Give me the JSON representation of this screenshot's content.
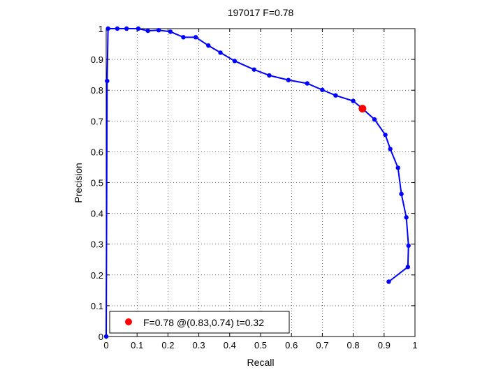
{
  "chart_data": {
    "type": "line",
    "title": "197017 F=0.78",
    "xlabel": "Recall",
    "ylabel": "Precision",
    "xlim": [
      0,
      1
    ],
    "ylim": [
      0,
      1
    ],
    "xticks": [
      0,
      0.1,
      0.2,
      0.3,
      0.4,
      0.5,
      0.6,
      0.7,
      0.8,
      0.9,
      1
    ],
    "yticks": [
      0,
      0.1,
      0.2,
      0.3,
      0.4,
      0.5,
      0.6,
      0.7,
      0.8,
      0.9,
      1
    ],
    "xtick_labels": [
      "0",
      "0.1",
      "0.2",
      "0.3",
      "0.4",
      "0.5",
      "0.6",
      "0.7",
      "0.8",
      "0.9",
      "1"
    ],
    "ytick_labels": [
      "0",
      "0.1",
      "0.2",
      "0.3",
      "0.4",
      "0.5",
      "0.6",
      "0.7",
      "0.8",
      "0.9",
      "1"
    ],
    "grid": true,
    "legend_position": "bottom-left",
    "series_color": "#0000ff",
    "marker_color": "#ff0000",
    "series": [
      {
        "x": [
          0.915,
          0.977,
          0.979,
          0.972,
          0.956,
          0.945,
          0.92,
          0.904,
          0.869,
          0.83,
          0.8,
          0.743,
          0.7,
          0.651,
          0.59,
          0.528,
          0.479,
          0.416,
          0.37,
          0.331,
          0.29,
          0.25,
          0.208,
          0.17,
          0.135,
          0.104,
          0.066,
          0.036,
          0.006,
          0.003,
          0.0
        ],
        "y": [
          0.178,
          0.226,
          0.295,
          0.387,
          0.463,
          0.548,
          0.609,
          0.655,
          0.705,
          0.74,
          0.765,
          0.783,
          0.801,
          0.822,
          0.833,
          0.848,
          0.867,
          0.895,
          0.922,
          0.945,
          0.972,
          0.972,
          0.99,
          0.995,
          0.993,
          1.0,
          1.0,
          1.0,
          1.0,
          0.83,
          0.0
        ]
      }
    ],
    "highlight": {
      "x": 0.83,
      "y": 0.74,
      "label": "F=0.78 @(0.83,0.74) t=0.32"
    }
  }
}
